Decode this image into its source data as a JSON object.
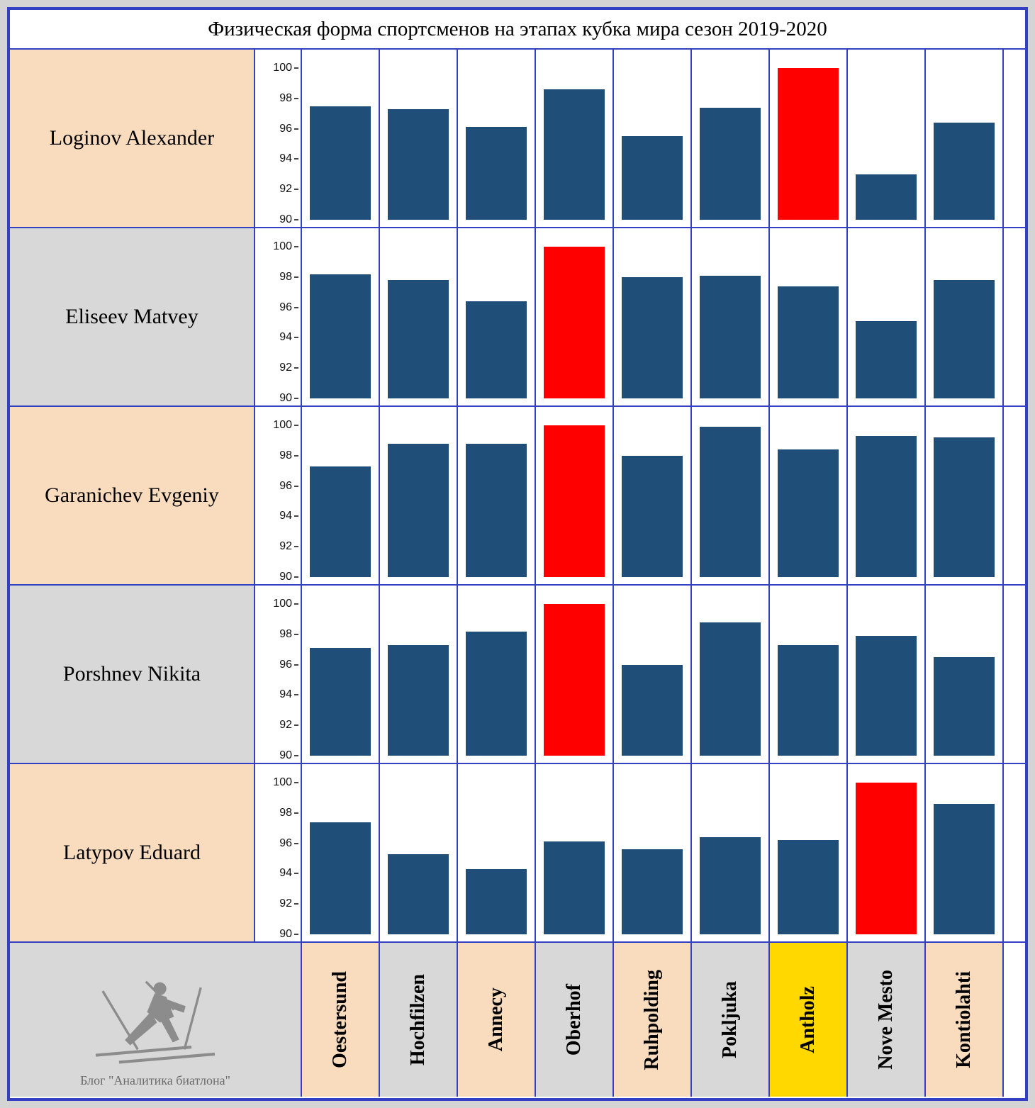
{
  "title": "Физическая форма спортсменов на этапах кубка мира сезон 2019-2020",
  "footer": {
    "caption": "Блог \"Аналитика биатлона\""
  },
  "chart_data": {
    "type": "bar",
    "title": "Физическая форма спортсменов на этапах кубка мира сезон 2019-2020",
    "ylim": [
      90,
      100
    ],
    "yticks": [
      100,
      98,
      96,
      94,
      92,
      90
    ],
    "grid": false,
    "bar_color": "#1F4E79",
    "max_color": "#FF0000",
    "categories": [
      {
        "label": "Oestersund",
        "bg": "peach"
      },
      {
        "label": "Hochfilzen",
        "bg": "gray"
      },
      {
        "label": "Annecy",
        "bg": "peach"
      },
      {
        "label": "Oberhof",
        "bg": "gray"
      },
      {
        "label": "Ruhpolding",
        "bg": "peach"
      },
      {
        "label": "Pokljuka",
        "bg": "gray"
      },
      {
        "label": "Antholz",
        "bg": "yellow"
      },
      {
        "label": "Nove Mesto",
        "bg": "gray"
      },
      {
        "label": "Kontiolahti",
        "bg": "peach"
      }
    ],
    "highlight_category": "Antholz",
    "series": [
      {
        "name": "Loginov Alexander",
        "row_bg": "peach",
        "values": [
          97.5,
          97.3,
          96.1,
          98.6,
          95.5,
          97.4,
          100.0,
          93.0,
          96.4
        ]
      },
      {
        "name": "Eliseev Matvey",
        "row_bg": "gray",
        "values": [
          98.2,
          97.8,
          96.4,
          100.0,
          98.0,
          98.1,
          97.4,
          95.1,
          97.8
        ]
      },
      {
        "name": "Garanichev Evgeniy",
        "row_bg": "peach",
        "values": [
          97.3,
          98.8,
          98.8,
          100.0,
          98.0,
          99.9,
          98.4,
          99.3,
          99.2
        ]
      },
      {
        "name": "Porshnev Nikita",
        "row_bg": "gray",
        "values": [
          97.1,
          97.3,
          98.2,
          100.0,
          96.0,
          98.8,
          97.3,
          97.9,
          96.5
        ]
      },
      {
        "name": "Latypov Eduard",
        "row_bg": "peach",
        "values": [
          97.4,
          95.3,
          94.3,
          96.1,
          95.6,
          96.4,
          96.2,
          100.0,
          98.6
        ]
      }
    ]
  }
}
